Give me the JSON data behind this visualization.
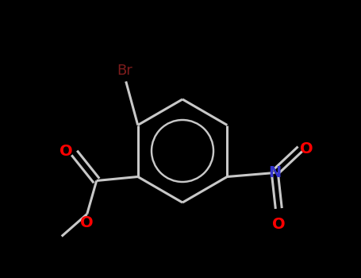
{
  "bg_color": "#000000",
  "bond_color": "#c8c8c8",
  "line_width": 2.2,
  "atom_colors": {
    "O": "#ff0000",
    "N": "#3333cc",
    "Br": "#7d1c1c",
    "C": "#c8c8c8"
  },
  "font_size_br": 13,
  "font_size_o": 14,
  "font_size_n": 14
}
